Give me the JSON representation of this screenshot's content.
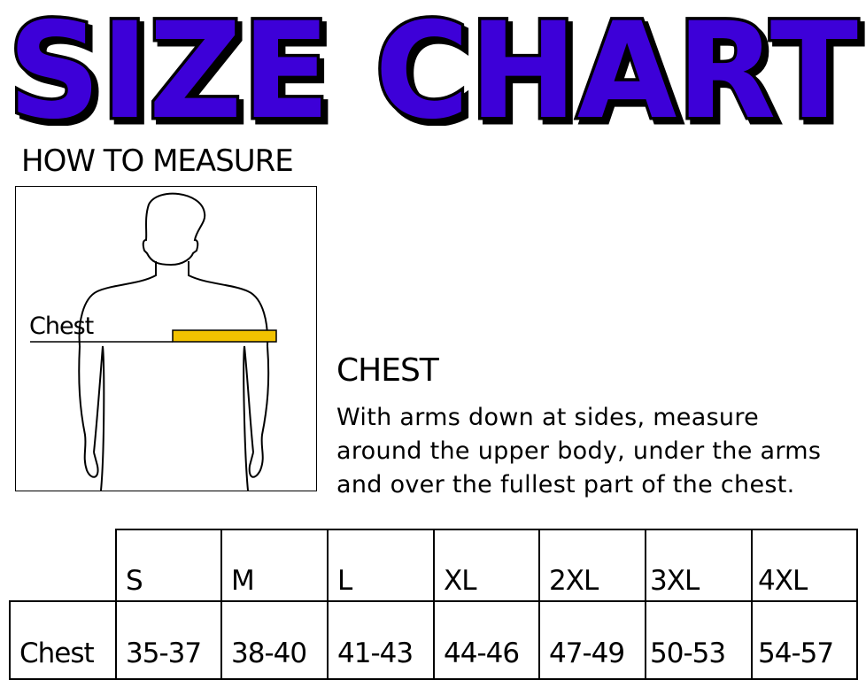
{
  "title": "SIZE CHART",
  "colors": {
    "title_fill": "#3d00d8",
    "title_outline": "#000000",
    "tape": "#f2c200"
  },
  "how_to_measure": {
    "heading": "HOW TO MEASURE",
    "figure_label": "Chest"
  },
  "chest": {
    "heading": "CHEST",
    "lines": [
      "With arms down at sides, measure",
      "around the upper body, under the arms",
      "and over the fullest part of the chest."
    ]
  },
  "table": {
    "sizes": [
      "S",
      "M",
      "L",
      "XL",
      "2XL",
      "3XL",
      "4XL"
    ],
    "row_label": "Chest",
    "values": [
      "35-37",
      "38-40",
      "41-43",
      "44-46",
      "47-49",
      "50-53",
      "54-57"
    ]
  }
}
